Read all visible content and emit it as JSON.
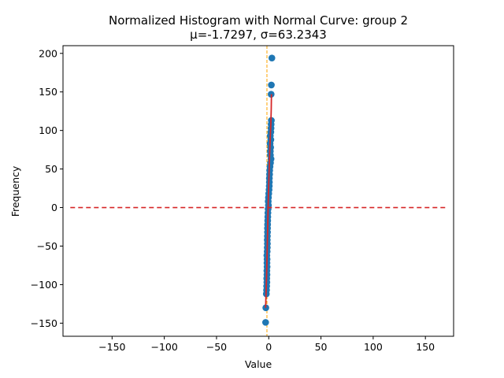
{
  "chart_data": {
    "type": "scatter",
    "title": "Normalized Histogram with Normal Curve: group 2",
    "subtitle": "μ=-1.7297, σ=63.2343",
    "xlabel": "Value",
    "ylabel": "Frequency",
    "xlim": [
      -197,
      177
    ],
    "ylim": [
      -167,
      210
    ],
    "xticks": [
      -150,
      -100,
      -50,
      0,
      50,
      100,
      150
    ],
    "yticks": [
      -150,
      -100,
      -50,
      0,
      50,
      100,
      150,
      200
    ],
    "xtick_labels": [
      "−150",
      "−100",
      "−50",
      "0",
      "50",
      "100",
      "150"
    ],
    "ytick_labels": [
      "−150",
      "−100",
      "−50",
      "0",
      "50",
      "100",
      "150",
      "200"
    ],
    "grid": false,
    "colors": {
      "points": "#1f77b4",
      "curve": "#d62728",
      "hline": "#d62728",
      "vline": "#ffa500",
      "text": "#000000"
    },
    "points": [
      {
        "x": 3.0,
        "y": 194
      },
      {
        "x": 2.5,
        "y": 159
      },
      {
        "x": 2.3,
        "y": 147
      },
      {
        "x": 2.5,
        "y": 113
      },
      {
        "x": 2.3,
        "y": 108
      },
      {
        "x": 2.2,
        "y": 103
      },
      {
        "x": 2.0,
        "y": 98
      },
      {
        "x": 1.5,
        "y": 93
      },
      {
        "x": 2.0,
        "y": 88
      },
      {
        "x": 1.3,
        "y": 83
      },
      {
        "x": 1.8,
        "y": 78
      },
      {
        "x": 1.5,
        "y": 73
      },
      {
        "x": 1.6,
        "y": 68
      },
      {
        "x": 2.2,
        "y": 63
      },
      {
        "x": 1.7,
        "y": 58
      },
      {
        "x": 1.2,
        "y": 53
      },
      {
        "x": 0.9,
        "y": 48
      },
      {
        "x": 0.8,
        "y": 43
      },
      {
        "x": 0.6,
        "y": 38
      },
      {
        "x": 0.6,
        "y": 33
      },
      {
        "x": 0.5,
        "y": 28
      },
      {
        "x": 0.3,
        "y": 23
      },
      {
        "x": 0.0,
        "y": 18
      },
      {
        "x": -0.3,
        "y": 13
      },
      {
        "x": -0.5,
        "y": 8
      },
      {
        "x": -0.3,
        "y": 3
      },
      {
        "x": -0.6,
        "y": -2
      },
      {
        "x": -0.8,
        "y": -7
      },
      {
        "x": -0.9,
        "y": -12
      },
      {
        "x": -1.0,
        "y": -17
      },
      {
        "x": -1.1,
        "y": -22
      },
      {
        "x": -1.2,
        "y": -27
      },
      {
        "x": -1.2,
        "y": -32
      },
      {
        "x": -1.3,
        "y": -37
      },
      {
        "x": -1.4,
        "y": -42
      },
      {
        "x": -1.3,
        "y": -47
      },
      {
        "x": -1.4,
        "y": -52
      },
      {
        "x": -1.5,
        "y": -57
      },
      {
        "x": -1.8,
        "y": -62
      },
      {
        "x": -1.6,
        "y": -67
      },
      {
        "x": -1.7,
        "y": -72
      },
      {
        "x": -1.6,
        "y": -77
      },
      {
        "x": -1.8,
        "y": -82
      },
      {
        "x": -1.7,
        "y": -87
      },
      {
        "x": -1.9,
        "y": -92
      },
      {
        "x": -1.8,
        "y": -97
      },
      {
        "x": -2.0,
        "y": -102
      },
      {
        "x": -2.1,
        "y": -107
      },
      {
        "x": -2.3,
        "y": -112
      },
      {
        "x": -2.8,
        "y": -130
      },
      {
        "x": -3.0,
        "y": -149
      }
    ],
    "curve": [
      {
        "x": -3.0,
        "y": -130
      },
      {
        "x": -2.6,
        "y": -112
      },
      {
        "x": -2.2,
        "y": -95
      },
      {
        "x": -1.8,
        "y": -75
      },
      {
        "x": -1.4,
        "y": -50
      },
      {
        "x": -1.0,
        "y": -25
      },
      {
        "x": -0.6,
        "y": 0
      },
      {
        "x": -0.2,
        "y": 22
      },
      {
        "x": 0.3,
        "y": 45
      },
      {
        "x": 0.8,
        "y": 68
      },
      {
        "x": 1.4,
        "y": 90
      },
      {
        "x": 2.0,
        "y": 108
      },
      {
        "x": 2.4,
        "y": 128
      },
      {
        "x": 2.6,
        "y": 147
      }
    ],
    "hline": {
      "y": 0,
      "x_from": -190,
      "x_to": 170
    },
    "vline": {
      "x": -1.7297
    }
  }
}
